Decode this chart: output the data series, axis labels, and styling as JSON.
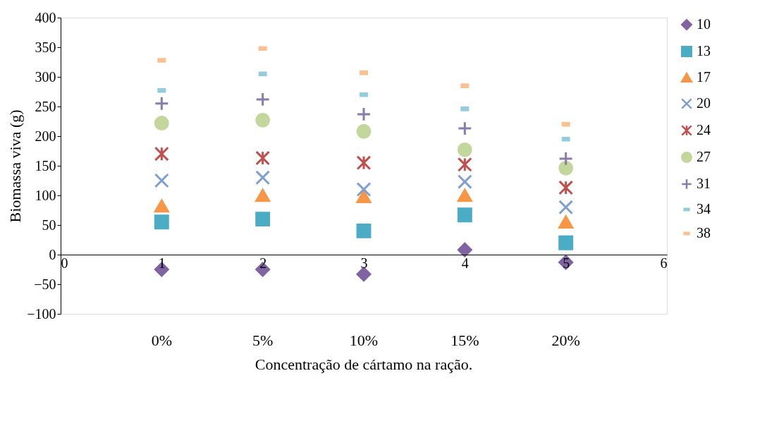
{
  "chart_data": {
    "type": "scatter",
    "xlabel": "Concentração de cártamo na ração.",
    "ylabel": "Biomassa viva (g)",
    "x": [
      1,
      2,
      3,
      4,
      5
    ],
    "xlim": [
      0,
      6
    ],
    "xticks": [
      0,
      1,
      2,
      3,
      4,
      5,
      6
    ],
    "ylim": [
      -100,
      400
    ],
    "yticks": [
      -100,
      -50,
      0,
      50,
      100,
      150,
      200,
      250,
      300,
      350,
      400
    ],
    "grid": false,
    "legend": "right",
    "annotations": [
      "0%",
      "5%",
      "10%",
      "15%",
      "20%"
    ],
    "series": [
      {
        "name": "10",
        "color": "#8064a2",
        "marker": "diamond",
        "values": [
          -25,
          -25,
          -33,
          8,
          -13
        ]
      },
      {
        "name": "13",
        "color": "#4bacc6",
        "marker": "square",
        "values": [
          55,
          60,
          40,
          67,
          20
        ]
      },
      {
        "name": "17",
        "color": "#f79646",
        "marker": "triangle",
        "values": [
          82,
          100,
          98,
          100,
          55
        ]
      },
      {
        "name": "20",
        "color": "#7f9fd0",
        "marker": "cross",
        "values": [
          125,
          130,
          110,
          123,
          80
        ]
      },
      {
        "name": "24",
        "color": "#c0504d",
        "marker": "cross",
        "values": [
          170,
          163,
          155,
          152,
          113
        ]
      },
      {
        "name": "27",
        "color": "#c3d69b",
        "marker": "circle",
        "values": [
          222,
          227,
          208,
          177,
          146
        ]
      },
      {
        "name": "31",
        "color": "#8a7ca8",
        "marker": "cross",
        "values": [
          255,
          262,
          237,
          213,
          162
        ]
      },
      {
        "name": "34",
        "color": "#93cddd",
        "values": [
          277,
          305,
          270,
          246,
          195
        ]
      },
      {
        "name": "38",
        "color": "#fac090",
        "values": [
          328,
          348,
          307,
          285,
          220
        ]
      }
    ]
  }
}
